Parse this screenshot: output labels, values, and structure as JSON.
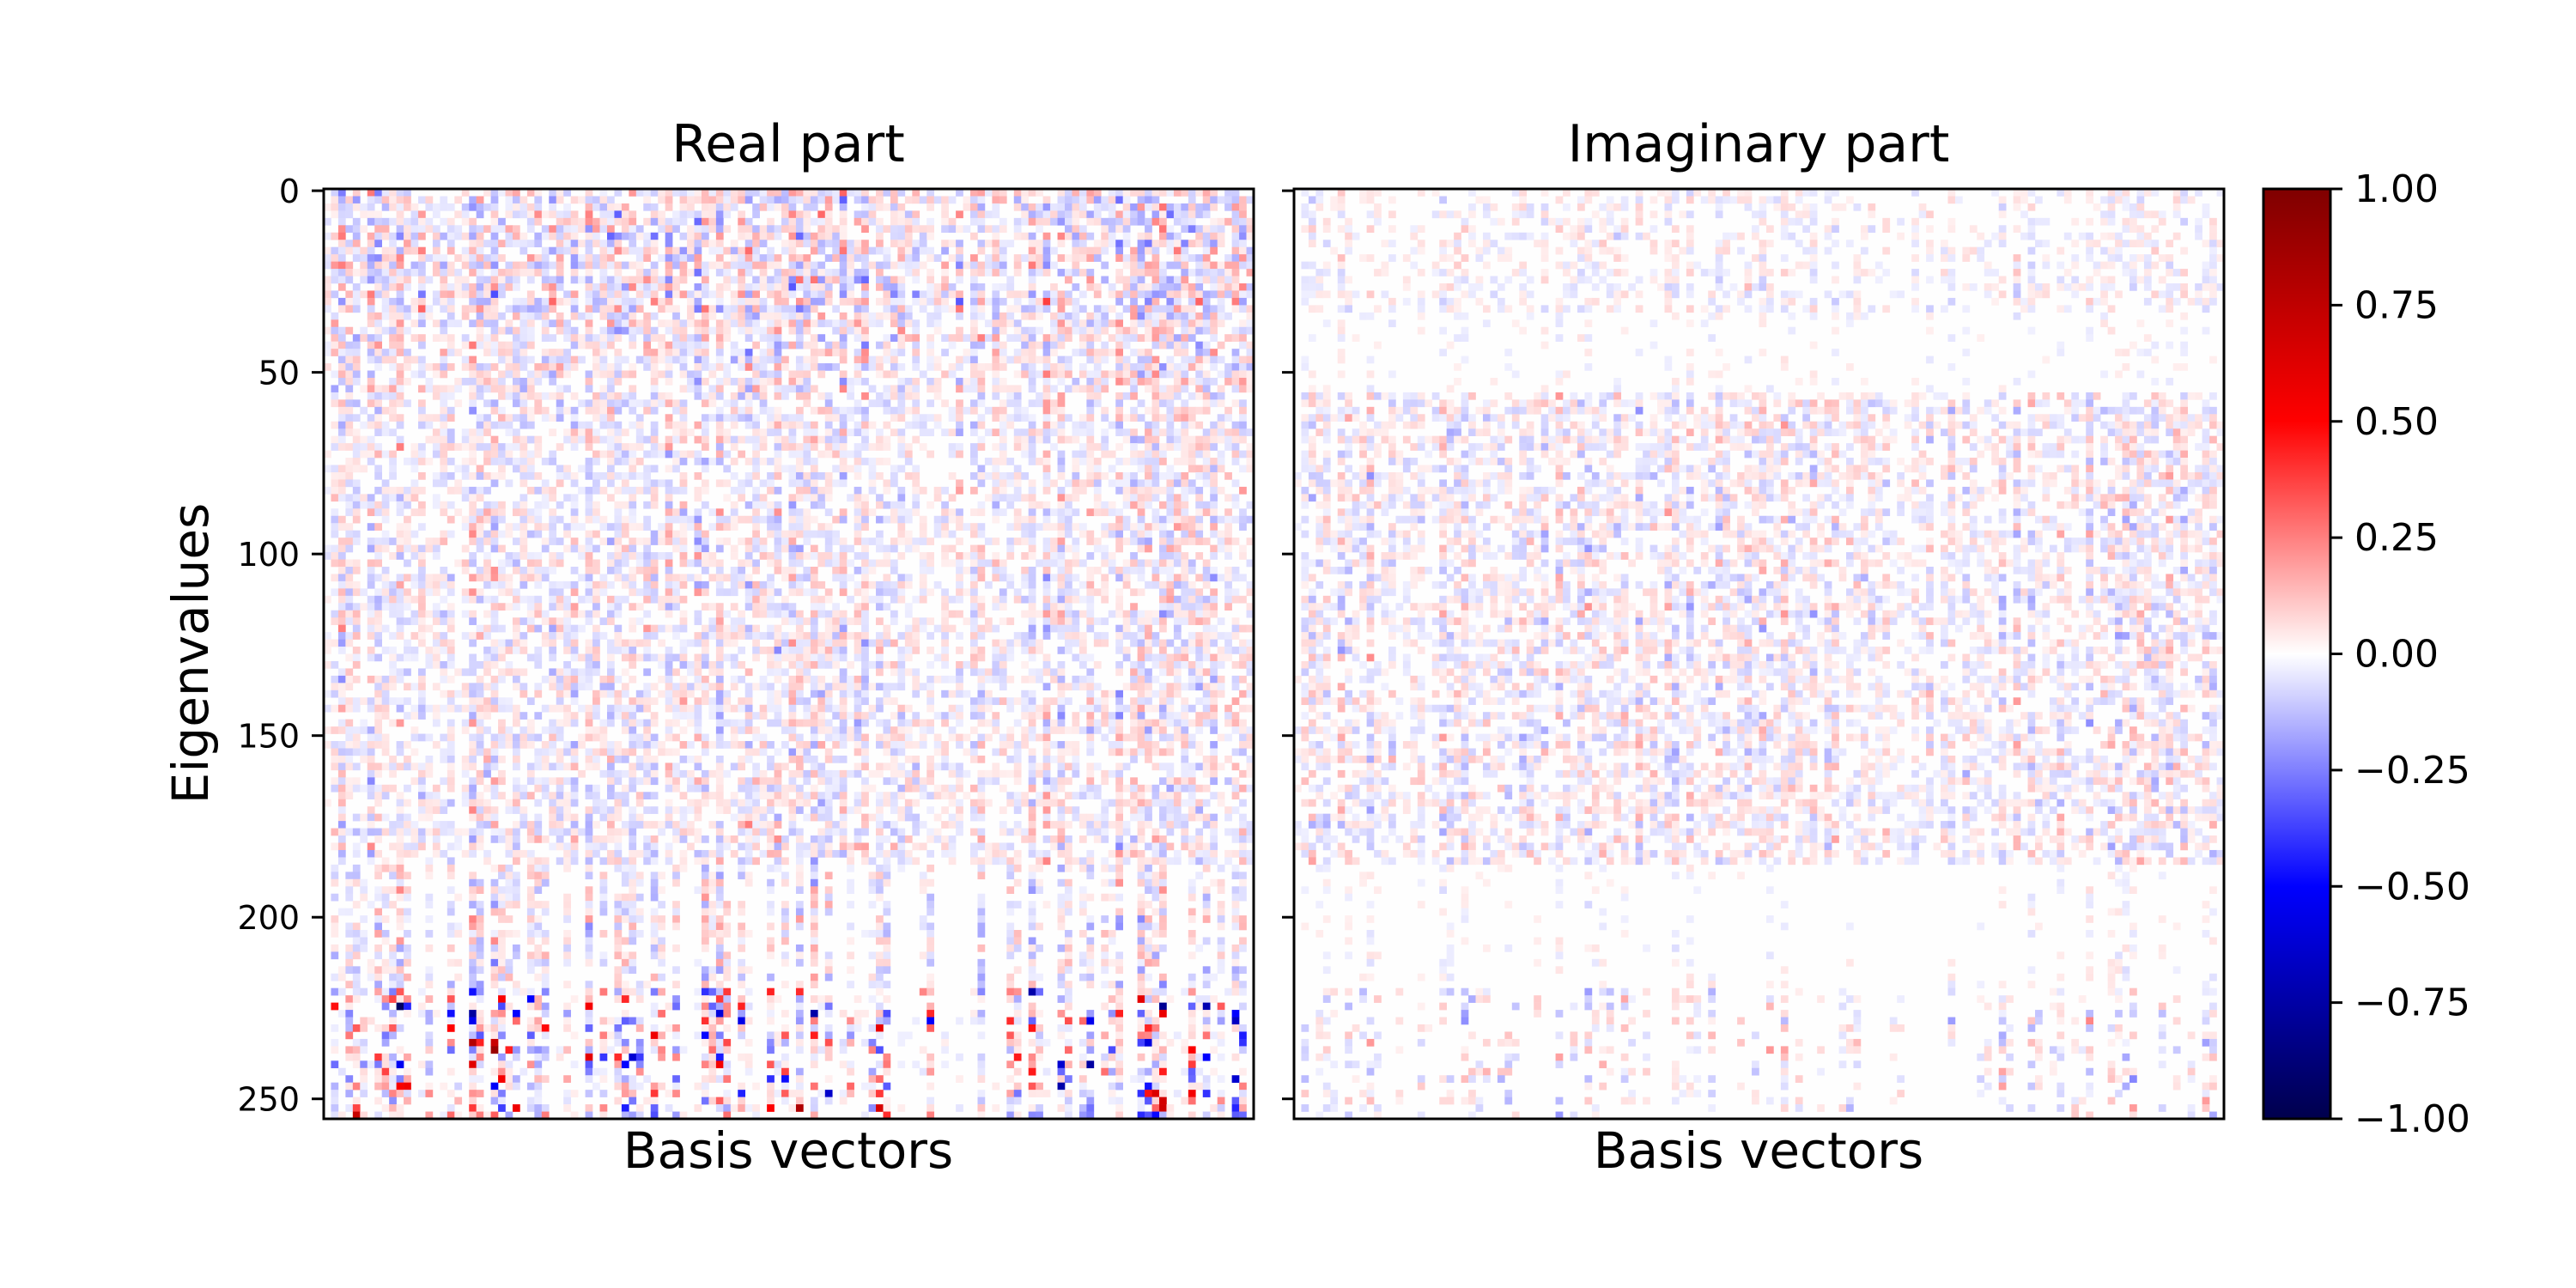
{
  "chart_data": [
    {
      "type": "heatmap",
      "title": "Real part",
      "xlabel": "Basis vectors",
      "ylabel": "Eigenvalues",
      "y_tick_labels": [
        "0",
        "50",
        "100",
        "150",
        "200",
        "250"
      ],
      "y_ticks": [
        0,
        50,
        100,
        150,
        200,
        250
      ],
      "ylim": [
        256,
        0
      ],
      "n_rows": 256,
      "n_cols": 256,
      "rows_with_data": [
        0,
        220
      ],
      "sparse_column_block": [
        186,
        256
      ],
      "value_range": [
        -1.0,
        1.0
      ],
      "colormap": "seismic"
    },
    {
      "type": "heatmap",
      "title": "Imaginary part",
      "xlabel": "Basis vectors",
      "ylabel": "",
      "y_tick_labels": [],
      "y_ticks": [
        0,
        50,
        100,
        150,
        200,
        250
      ],
      "ylim": [
        256,
        0
      ],
      "n_rows": 256,
      "n_cols": 256,
      "value_range": [
        -1.0,
        1.0
      ],
      "colormap": "seismic"
    }
  ],
  "colorbar": {
    "min": -1.0,
    "max": 1.0,
    "tick_values": [
      1.0,
      0.75,
      0.5,
      0.25,
      0.0,
      -0.25,
      -0.5,
      -0.75,
      -1.0
    ],
    "tick_labels": [
      "1.00",
      "0.75",
      "0.50",
      "0.25",
      "0.00",
      "−0.25",
      "−0.50",
      "−0.75",
      "−1.00"
    ],
    "colors": [
      "#00004c",
      "#0000ff",
      "#ffffff",
      "#ff0000",
      "#7f0000"
    ]
  },
  "colors": {
    "negative_deep": "#00004c",
    "negative": "#0000ff",
    "zero": "#ffffff",
    "positive": "#ff0000",
    "positive_deep": "#7f0000"
  }
}
